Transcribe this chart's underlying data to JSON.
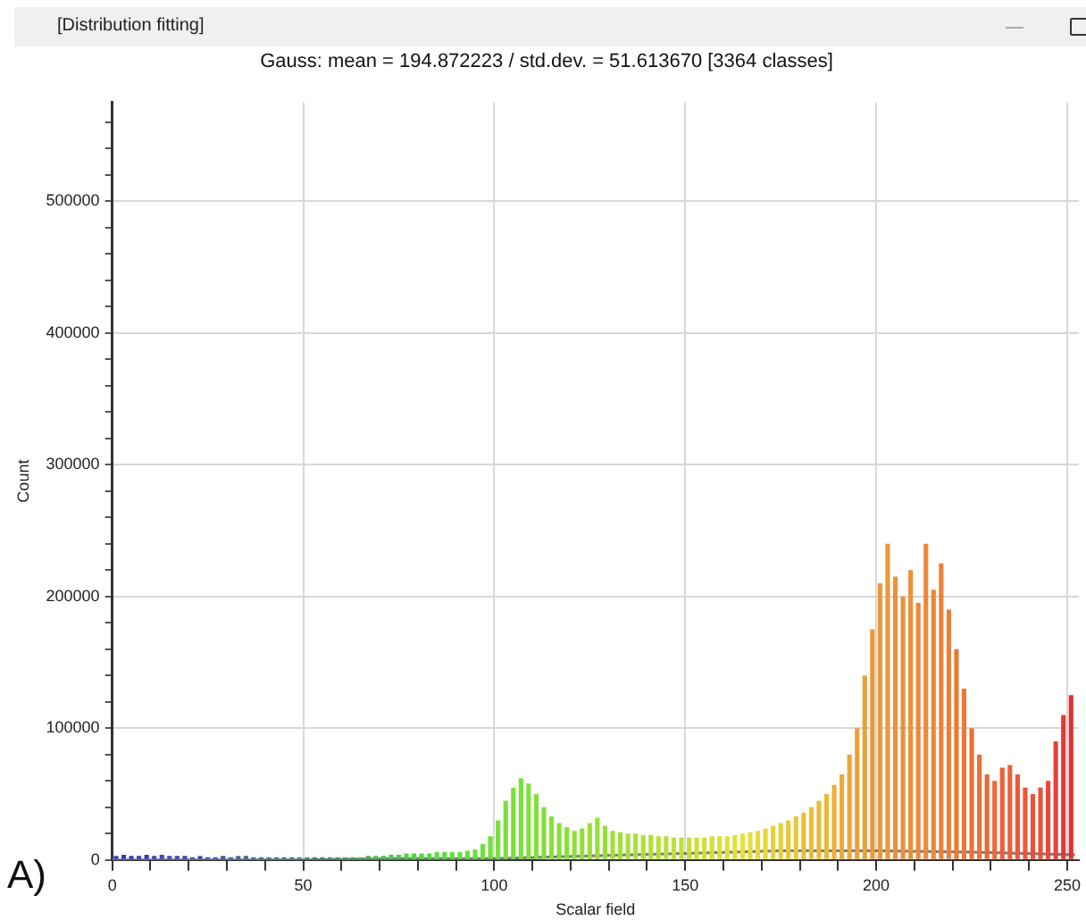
{
  "chart_data": {
    "type": "histogram",
    "title": "Gauss: mean = 194.872223 / std.dev. = 51.613670 [3364 classes]",
    "xlabel": "Scalar field",
    "ylabel": "Count",
    "annotations": [
      "[Distribution fitting]",
      "A)"
    ],
    "xlim": [
      0,
      253
    ],
    "xticks": [
      0,
      {
        "value": 10,
        "label": null
      },
      {
        "value": 20,
        "label": null
      },
      {
        "value": 30,
        "label": null
      },
      {
        "value": 40,
        "label": null
      },
      50,
      {
        "value": 60,
        "label": null
      },
      {
        "value": 70,
        "label": null
      },
      {
        "value": 80,
        "label": null
      },
      {
        "value": 90,
        "label": null
      },
      100,
      {
        "value": 110,
        "label": null
      },
      {
        "value": 120,
        "label": null
      },
      {
        "value": 130,
        "label": null
      },
      {
        "value": 140,
        "label": null
      },
      150,
      {
        "value": 160,
        "label": null
      },
      {
        "value": 170,
        "label": null
      },
      {
        "value": 180,
        "label": null
      },
      {
        "value": 190,
        "label": null
      },
      200,
      {
        "value": 210,
        "label": null
      },
      {
        "value": 220,
        "label": null
      },
      {
        "value": 230,
        "label": null
      },
      {
        "value": 240,
        "label": null
      },
      250
    ],
    "ylim": [
      0,
      575000
    ],
    "yticks": [
      0,
      {
        "value": 20000,
        "label": null
      },
      {
        "value": 40000,
        "label": null
      },
      {
        "value": 60000,
        "label": null
      },
      {
        "value": 80000,
        "label": null
      },
      100000,
      {
        "value": 120000,
        "label": null
      },
      {
        "value": 140000,
        "label": null
      },
      {
        "value": 160000,
        "label": null
      },
      {
        "value": 180000,
        "label": null
      },
      200000,
      {
        "value": 220000,
        "label": null
      },
      {
        "value": 240000,
        "label": null
      },
      {
        "value": 260000,
        "label": null
      },
      {
        "value": 280000,
        "label": null
      },
      300000,
      {
        "value": 320000,
        "label": null
      },
      {
        "value": 340000,
        "label": null
      },
      {
        "value": 360000,
        "label": null
      },
      {
        "value": 380000,
        "label": null
      },
      400000,
      {
        "value": 420000,
        "label": null
      },
      {
        "value": 440000,
        "label": null
      },
      {
        "value": 460000,
        "label": null
      },
      {
        "value": 480000,
        "label": null
      },
      500000,
      {
        "value": 520000,
        "label": null
      },
      {
        "value": 540000,
        "label": null
      },
      {
        "value": 560000,
        "label": null
      }
    ],
    "grid": true,
    "legend": false,
    "bins": [
      0,
      2,
      4,
      6,
      8,
      10,
      12,
      14,
      16,
      18,
      20,
      22,
      24,
      26,
      28,
      30,
      32,
      34,
      36,
      38,
      40,
      42,
      44,
      46,
      48,
      50,
      52,
      54,
      56,
      58,
      60,
      62,
      64,
      66,
      68,
      70,
      72,
      74,
      76,
      78,
      80,
      82,
      84,
      86,
      88,
      90,
      92,
      94,
      96,
      98,
      100,
      102,
      104,
      106,
      108,
      110,
      112,
      114,
      116,
      118,
      120,
      122,
      124,
      126,
      128,
      130,
      132,
      134,
      136,
      138,
      140,
      142,
      144,
      146,
      148,
      150,
      152,
      154,
      156,
      158,
      160,
      162,
      164,
      166,
      168,
      170,
      172,
      174,
      176,
      178,
      180,
      182,
      184,
      186,
      188,
      190,
      192,
      194,
      196,
      198,
      200,
      202,
      204,
      206,
      208,
      210,
      212,
      214,
      216,
      218,
      220,
      222,
      224,
      226,
      228,
      230,
      232,
      234,
      236,
      238,
      240,
      242,
      244,
      246,
      248,
      250,
      252
    ],
    "values": [
      3000,
      4000,
      3000,
      3000,
      4000,
      3000,
      4000,
      3000,
      3000,
      3000,
      2000,
      3000,
      2000,
      2000,
      3000,
      2000,
      3000,
      3000,
      2000,
      2000,
      2000,
      2000,
      2000,
      2000,
      2000,
      2000,
      2000,
      2000,
      2000,
      2000,
      2000,
      2000,
      2000,
      3000,
      3000,
      3000,
      4000,
      4000,
      5000,
      5000,
      5000,
      5000,
      6000,
      6000,
      6000,
      6000,
      7000,
      8000,
      12000,
      18000,
      30000,
      45000,
      55000,
      62000,
      58000,
      50000,
      40000,
      33000,
      28000,
      25000,
      22000,
      24000,
      28000,
      32000,
      26000,
      22000,
      21000,
      20000,
      20000,
      19000,
      19000,
      18000,
      18000,
      17000,
      17000,
      17000,
      17000,
      17000,
      18000,
      18000,
      18000,
      19000,
      20000,
      21000,
      22000,
      24000,
      26000,
      28000,
      30000,
      33000,
      36000,
      40000,
      45000,
      50000,
      57000,
      65000,
      80000,
      100000,
      140000,
      175000,
      210000,
      240000,
      215000,
      200000,
      220000,
      195000,
      240000,
      205000,
      225000,
      190000,
      160000,
      130000,
      100000,
      80000,
      65000,
      60000,
      70000,
      72000,
      65000,
      55000,
      50000,
      55000,
      60000,
      90000,
      110000,
      125000
    ],
    "colors": [
      "#3a3ac0",
      "#3a3ac0",
      "#3a3ac0",
      "#3a3ac0",
      "#3a3ac0",
      "#3a48b8",
      "#3a48b8",
      "#3a48b8",
      "#3a48b8",
      "#3a48b8",
      "#3a58a8",
      "#3a58a8",
      "#3a58a8",
      "#3a58a8",
      "#3a58a8",
      "#3a6898",
      "#3a6898",
      "#3a6898",
      "#3a6898",
      "#3a6898",
      "#3a7888",
      "#3a7888",
      "#3a7888",
      "#3a7888",
      "#3a8878",
      "#3a8878",
      "#3a8878",
      "#3a8878",
      "#3a9868",
      "#3a9868",
      "#3aa858",
      "#3aa858",
      "#3ab850",
      "#3ab850",
      "#3ac848",
      "#3ac848",
      "#40d040",
      "#40d040",
      "#48d838",
      "#48d838",
      "#50dc38",
      "#50dc38",
      "#58e038",
      "#58e038",
      "#60e038",
      "#60e038",
      "#68e038",
      "#68e038",
      "#70e038",
      "#70e038",
      "#78e038",
      "#78e038",
      "#78e038",
      "#78e038",
      "#80e038",
      "#80e038",
      "#80e038",
      "#88e038",
      "#88e038",
      "#88e038",
      "#90e038",
      "#90e038",
      "#98e038",
      "#98e038",
      "#98e038",
      "#a0e038",
      "#a0e038",
      "#a8e038",
      "#a8e038",
      "#b0e038",
      "#b0e038",
      "#b8e038",
      "#b8e038",
      "#c0e038",
      "#c0e038",
      "#c8e038",
      "#c8e038",
      "#d0e038",
      "#d0e038",
      "#d8e038",
      "#e0e038",
      "#e0e038",
      "#e8e038",
      "#e8e038",
      "#e8d838",
      "#e8d838",
      "#e8d038",
      "#e8d038",
      "#e8c838",
      "#e8c838",
      "#e8c038",
      "#e8c038",
      "#ecb838",
      "#ecb838",
      "#ecb038",
      "#eca838",
      "#eca838",
      "#eca038",
      "#eca038",
      "#ec9838",
      "#ec9838",
      "#ec9838",
      "#ec9038",
      "#ec9038",
      "#ec9038",
      "#ec8838",
      "#ec8838",
      "#ec8838",
      "#ec8038",
      "#ec8038",
      "#ec7838",
      "#ec7838",
      "#ec7038",
      "#ec7038",
      "#ec6838",
      "#ec6838",
      "#ec6038",
      "#ec6038",
      "#ec5838",
      "#ec5838",
      "#e85038",
      "#e85038",
      "#e84838",
      "#e84038",
      "#e43838",
      "#e03030"
    ],
    "series": [
      {
        "type": "line",
        "color": "#7a7a7a",
        "x": [
          0,
          25,
          50,
          75,
          100,
          125,
          150,
          175,
          200,
          225,
          252
        ],
        "values": [
          0,
          0,
          0,
          1000,
          1000,
          3000,
          5000,
          7000,
          7000,
          6000,
          4000
        ]
      }
    ]
  }
}
